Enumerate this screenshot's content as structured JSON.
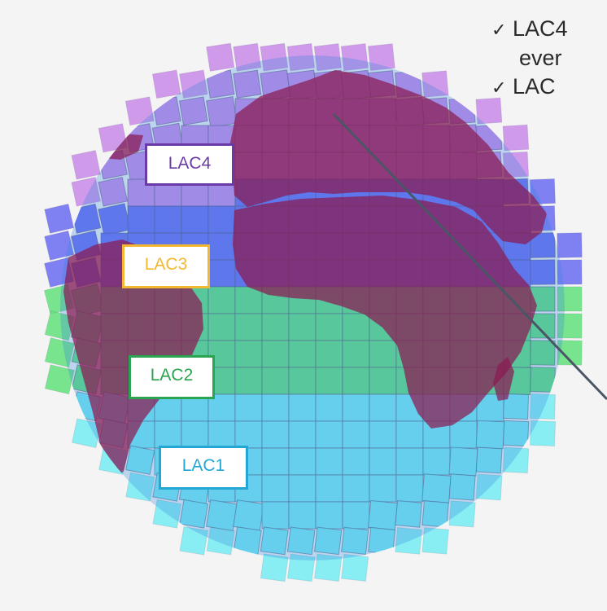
{
  "bullets": {
    "check_glyph": "✓",
    "line1": "LAC4",
    "line1_cont": "ever",
    "line2": "LAC"
  },
  "labels": {
    "lac4": "LAC4",
    "lac3": "LAC3",
    "lac2": "LAC2",
    "lac1": "LAC1"
  },
  "colors": {
    "background": "#f4f4f4",
    "lac4_tiles": "#c98ae8",
    "lac3_tiles": "#6a6cf2",
    "lac2_tiles": "#61e07a",
    "lac1_tiles": "#74ecf2",
    "globe_overlay": "#2d80df",
    "landmass": "#8a1b52",
    "pointer_line": "#4a5566",
    "lac4_border": "#6a3ba6",
    "lac3_border": "#f4b731",
    "lac2_border": "#2aa44e",
    "lac1_border": "#25a7d5"
  }
}
